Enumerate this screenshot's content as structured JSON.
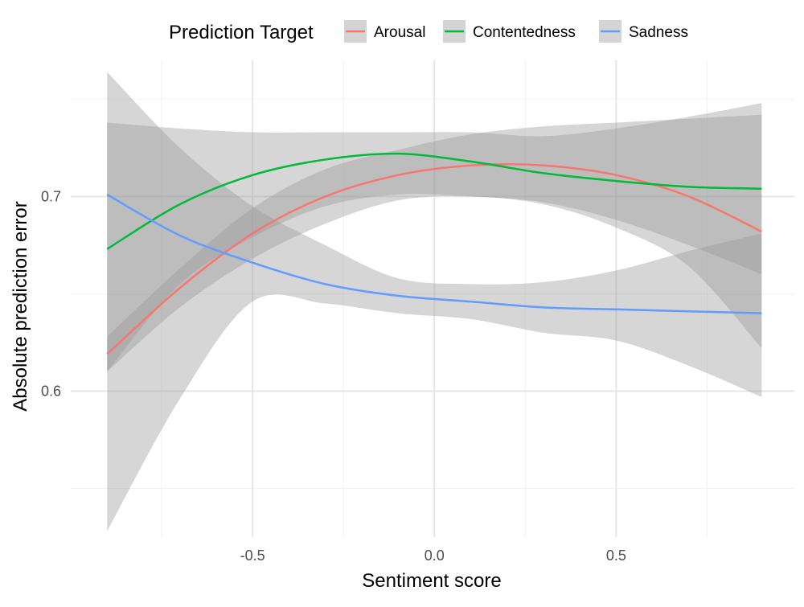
{
  "chart_data": {
    "type": "line",
    "xlabel": "Sentiment score",
    "ylabel": "Absolute prediction error",
    "xlim": [
      -1.0,
      0.99
    ],
    "ylim": [
      0.525,
      0.77
    ],
    "x_ticks": [
      {
        "value": -0.5,
        "label": "-0.5"
      },
      {
        "value": 0.0,
        "label": "0.0"
      },
      {
        "value": 0.5,
        "label": "0.5"
      }
    ],
    "y_ticks": [
      {
        "value": 0.6,
        "label": "0.6"
      },
      {
        "value": 0.7,
        "label": "0.7"
      }
    ],
    "minor_x": [
      -0.75,
      -0.25,
      0.25,
      0.75
    ],
    "minor_y": [
      0.55,
      0.65,
      0.75
    ],
    "grid": true,
    "legend": {
      "title": "Prediction Target",
      "placement": "top",
      "entries": [
        "Arousal",
        "Contentedness",
        "Sadness"
      ]
    },
    "series": [
      {
        "name": "Arousal",
        "color": "#F8766D",
        "x": [
          -0.9,
          -0.7,
          -0.5,
          -0.3,
          -0.1,
          0.1,
          0.3,
          0.5,
          0.7,
          0.9
        ],
        "y": [
          0.619,
          0.653,
          0.681,
          0.7,
          0.711,
          0.716,
          0.716,
          0.711,
          0.7,
          0.682
        ],
        "lower": [
          0.61,
          0.643,
          0.668,
          0.686,
          0.698,
          0.7,
          0.696,
          0.684,
          0.664,
          0.622
        ],
        "upper": [
          0.628,
          0.663,
          0.694,
          0.714,
          0.724,
          0.732,
          0.736,
          0.738,
          0.74,
          0.742
        ]
      },
      {
        "name": "Contentedness",
        "color": "#00BA38",
        "x": [
          -0.9,
          -0.7,
          -0.5,
          -0.3,
          -0.1,
          0.1,
          0.3,
          0.5,
          0.7,
          0.9
        ],
        "y": [
          0.673,
          0.696,
          0.711,
          0.719,
          0.722,
          0.718,
          0.712,
          0.708,
          0.705,
          0.704
        ],
        "lower": [
          0.61,
          0.655,
          0.679,
          0.695,
          0.701,
          0.7,
          0.697,
          0.688,
          0.675,
          0.66
        ],
        "upper": [
          0.738,
          0.735,
          0.733,
          0.733,
          0.733,
          0.733,
          0.731,
          0.735,
          0.741,
          0.748
        ]
      },
      {
        "name": "Sadness",
        "color": "#619CFF",
        "x": [
          -0.9,
          -0.7,
          -0.5,
          -0.3,
          -0.1,
          0.1,
          0.3,
          0.5,
          0.7,
          0.9
        ],
        "y": [
          0.701,
          0.68,
          0.666,
          0.655,
          0.649,
          0.646,
          0.643,
          0.642,
          0.641,
          0.64
        ],
        "lower": [
          0.528,
          0.596,
          0.646,
          0.645,
          0.64,
          0.637,
          0.63,
          0.626,
          0.613,
          0.597
        ],
        "upper": [
          0.764,
          0.725,
          0.695,
          0.675,
          0.658,
          0.655,
          0.656,
          0.662,
          0.672,
          0.681
        ]
      }
    ]
  }
}
